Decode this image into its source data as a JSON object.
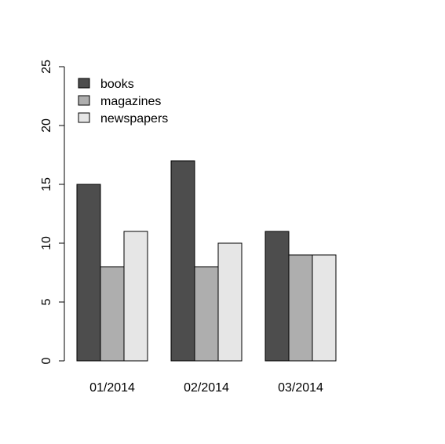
{
  "chart_data": {
    "type": "bar",
    "categories": [
      "01/2014",
      "02/2014",
      "03/2014"
    ],
    "series": [
      {
        "name": "books",
        "values": [
          15,
          17,
          11
        ],
        "color": "#4d4d4d"
      },
      {
        "name": "magazines",
        "values": [
          8,
          8,
          9
        ],
        "color": "#aeaeae"
      },
      {
        "name": "newspapers",
        "values": [
          11,
          10,
          9
        ],
        "color": "#e6e6e6"
      }
    ],
    "title": "",
    "xlabel": "",
    "ylabel": "",
    "ylim": [
      0,
      25
    ],
    "yticks": [
      "0",
      "5",
      "10",
      "15",
      "20",
      "25"
    ],
    "grid": false,
    "legend_position": "top-left",
    "bar_outline_color": "#000000"
  }
}
